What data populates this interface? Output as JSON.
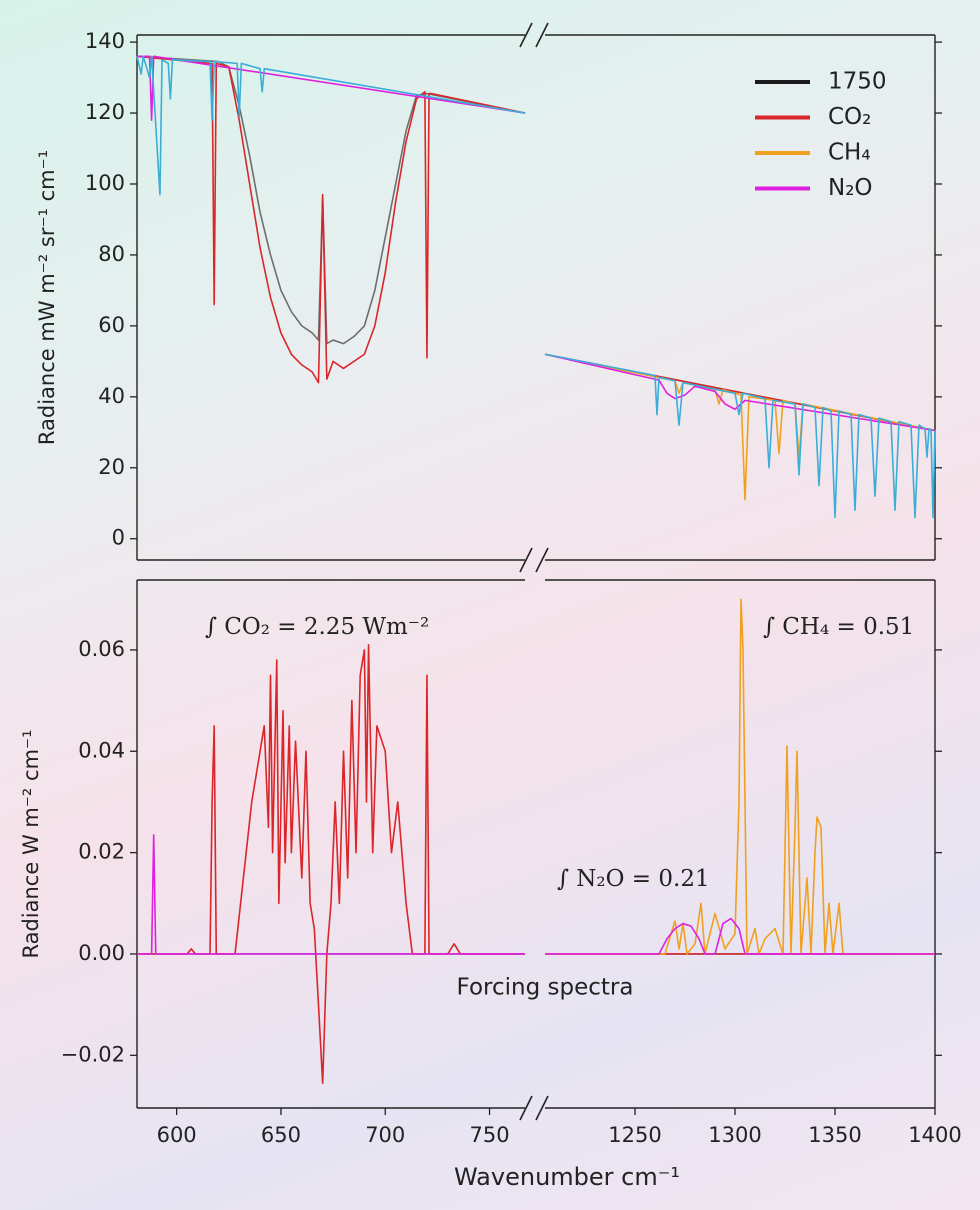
{
  "chart_data": [
    {
      "type": "line",
      "ylabel": "Radiance mW m⁻² sr⁻¹ cm⁻¹",
      "xlims": [
        [
          581,
          767
        ],
        [
          1205,
          1400
        ]
      ],
      "ylim": [
        -6,
        142
      ],
      "yticks": [
        0,
        20,
        40,
        60,
        80,
        100,
        120,
        140
      ],
      "legend": "upper right",
      "series": [
        {
          "name": "1750",
          "color": "#6e6e6e",
          "legend_color": "#1a1a1a",
          "x": [
            581,
            620,
            625,
            630,
            635,
            640,
            645,
            650,
            655,
            660,
            665,
            668,
            670,
            672,
            675,
            680,
            685,
            690,
            695,
            700,
            705,
            710,
            715,
            720,
            767,
            null,
            1205,
            1400
          ],
          "values": [
            136,
            134.5,
            133,
            122,
            108,
            92,
            80,
            70,
            64,
            60,
            58,
            56,
            96,
            55,
            56,
            55,
            57,
            60,
            70,
            85,
            100,
            115,
            125,
            125.5,
            120,
            null,
            52,
            30.5
          ]
        },
        {
          "name": "CO₂",
          "color": "#d9262a",
          "x": [
            581,
            616,
            617,
            618,
            619,
            625,
            630,
            635,
            640,
            645,
            650,
            655,
            660,
            665,
            668,
            670,
            672,
            675,
            680,
            685,
            690,
            695,
            700,
            705,
            710,
            715,
            719,
            720,
            721,
            722,
            767,
            null,
            1205,
            1400
          ],
          "values": [
            136,
            134,
            134,
            66,
            134,
            133,
            118,
            100,
            82,
            68,
            58,
            52,
            49,
            47,
            44,
            97,
            45,
            50,
            48,
            50,
            52,
            60,
            75,
            95,
            112,
            124,
            126,
            51,
            125.5,
            125.5,
            120,
            null,
            52,
            30.5
          ]
        },
        {
          "name": "CH₄",
          "color": "#f0a020",
          "x": [
            1205,
            1270,
            1272,
            1274,
            1290,
            1292,
            1294,
            1300,
            1303,
            1305,
            1307,
            1320,
            1322,
            1324,
            1330,
            1332,
            1334,
            1400
          ],
          "values": [
            52,
            44.5,
            41,
            44,
            42,
            38,
            42,
            41,
            40.5,
            11,
            40,
            39,
            24,
            39,
            38,
            23,
            38,
            30.5
          ]
        },
        {
          "name": "N₂O",
          "color": "#e020e0",
          "x": [
            581,
            587,
            588,
            589,
            767,
            null,
            1205,
            1262,
            1266,
            1270,
            1275,
            1280,
            1290,
            1295,
            1300,
            1305,
            1400
          ],
          "values": [
            136,
            136,
            118,
            136,
            120,
            null,
            52,
            44.7,
            41,
            39.5,
            40.5,
            43,
            41.5,
            38,
            36.5,
            39,
            30.5
          ]
        },
        {
          "color": "#3aaed8",
          "x": [
            581,
            583,
            584,
            587,
            588,
            592,
            593,
            596,
            597,
            598,
            616,
            617,
            618,
            629,
            630,
            631,
            640,
            641,
            642,
            767,
            null,
            1205,
            1260,
            1261,
            1262,
            1270,
            1272,
            1274,
            1300,
            1302,
            1304,
            1315,
            1317,
            1319,
            1330,
            1332,
            1334,
            1340,
            1342,
            1344,
            1348,
            1350,
            1352,
            1358,
            1360,
            1362,
            1368,
            1370,
            1372,
            1378,
            1380,
            1382,
            1388,
            1390,
            1392,
            1395,
            1396,
            1397,
            1398,
            1399,
            1400
          ],
          "values": [
            136,
            131,
            136,
            130,
            136,
            97,
            135,
            134,
            124,
            135,
            134.5,
            118,
            134.5,
            134,
            119,
            134,
            132.5,
            126,
            132.5,
            120,
            null,
            52,
            46,
            35,
            45.5,
            44.5,
            32,
            44,
            41,
            35,
            41,
            39.5,
            20,
            39,
            38,
            18,
            38,
            37,
            15,
            37,
            36,
            6,
            36,
            35,
            8,
            35,
            34,
            12,
            34,
            33,
            8,
            33,
            32,
            6,
            32,
            31,
            23,
            31,
            30.8,
            6,
            30.5
          ]
        }
      ]
    },
    {
      "type": "line",
      "ylabel": "Radiance W m⁻² cm⁻¹",
      "xlabel": "Wavenumber cm⁻¹",
      "xlims": [
        [
          581,
          767
        ],
        [
          1205,
          1400
        ]
      ],
      "xticks": [
        600,
        650,
        700,
        750,
        1250,
        1300,
        1350,
        1400
      ],
      "ylim": [
        -0.0304,
        0.0738
      ],
      "yticks": [
        {
          "value": -0.02,
          "label": "−0.02"
        },
        {
          "value": 0,
          "label": "0.00"
        },
        0.02,
        0.04,
        0.06
      ],
      "annotations": [
        "∫ CO₂ = 2.25 Wm⁻²",
        "∫ CH₄ = 0.51",
        "∫ N₂O = 0.21",
        "Forcing spectra"
      ],
      "series": [
        {
          "color": "#5b8fb0",
          "x": [
            581,
            767,
            null,
            1205,
            1400
          ],
          "values": [
            0,
            0,
            null,
            0,
            0
          ]
        },
        {
          "name": "CO₂",
          "color": "#d9262a",
          "x": [
            581,
            605,
            607,
            609,
            616,
            617,
            618,
            619,
            628,
            632,
            636,
            640,
            642,
            644,
            645,
            646,
            648,
            649,
            651,
            652,
            654,
            655,
            657,
            660,
            662,
            664,
            666,
            668,
            670,
            672,
            674,
            676,
            678,
            680,
            682,
            684,
            686,
            688,
            690,
            691,
            692,
            694,
            696,
            700,
            703,
            706,
            710,
            713,
            717,
            719,
            720,
            721,
            730,
            733,
            736,
            767,
            null,
            1205,
            1400
          ],
          "values": [
            0,
            0,
            0.001,
            0,
            0,
            0.03,
            0.045,
            0,
            0,
            0.015,
            0.03,
            0.04,
            0.045,
            0.025,
            0.055,
            0.02,
            0.058,
            0.01,
            0.048,
            0.018,
            0.045,
            0.02,
            0.042,
            0.015,
            0.04,
            0.01,
            0.005,
            -0.01,
            -0.0255,
            0,
            0.01,
            0.03,
            0.01,
            0.04,
            0.015,
            0.05,
            0.02,
            0.055,
            0.06,
            0.03,
            0.061,
            0.02,
            0.045,
            0.04,
            0.02,
            0.03,
            0.01,
            0,
            0,
            0,
            0.055,
            0,
            0,
            0.002,
            0,
            0,
            null,
            0,
            0
          ]
        },
        {
          "name": "CH₄",
          "color": "#f0a020",
          "x": [
            1205,
            1265,
            1268,
            1270,
            1272,
            1274,
            1276,
            1280,
            1283,
            1285,
            1290,
            1295,
            1300,
            1302,
            1303,
            1304,
            1306,
            1310,
            1312,
            1315,
            1320,
            1324,
            1326,
            1328,
            1330,
            1331,
            1333,
            1336,
            1338,
            1340,
            1341,
            1343,
            1345,
            1347,
            1349,
            1352,
            1354,
            1400
          ],
          "values": [
            0,
            0,
            0.004,
            0.0065,
            0.001,
            0.006,
            0,
            0.002,
            0.01,
            0,
            0.008,
            0.001,
            0.004,
            0.03,
            0.07,
            0.06,
            0,
            0.005,
            0,
            0.003,
            0.005,
            0,
            0.041,
            0,
            0.025,
            0.04,
            0,
            0.015,
            0,
            0.02,
            0.027,
            0.025,
            0,
            0.01,
            0,
            0.01,
            0,
            0
          ]
        },
        {
          "name": "N₂O",
          "color": "#e020e0",
          "x": [
            581,
            588,
            589,
            590,
            767,
            null,
            1205,
            1262,
            1266,
            1270,
            1274,
            1278,
            1282,
            1285,
            1290,
            1294,
            1298,
            1302,
            1305,
            1400
          ],
          "values": [
            0,
            0,
            0.0235,
            0,
            0,
            null,
            0,
            0,
            0.003,
            0.005,
            0.006,
            0.0055,
            0.003,
            0,
            0,
            0.006,
            0.007,
            0.005,
            0,
            0
          ]
        }
      ]
    }
  ]
}
